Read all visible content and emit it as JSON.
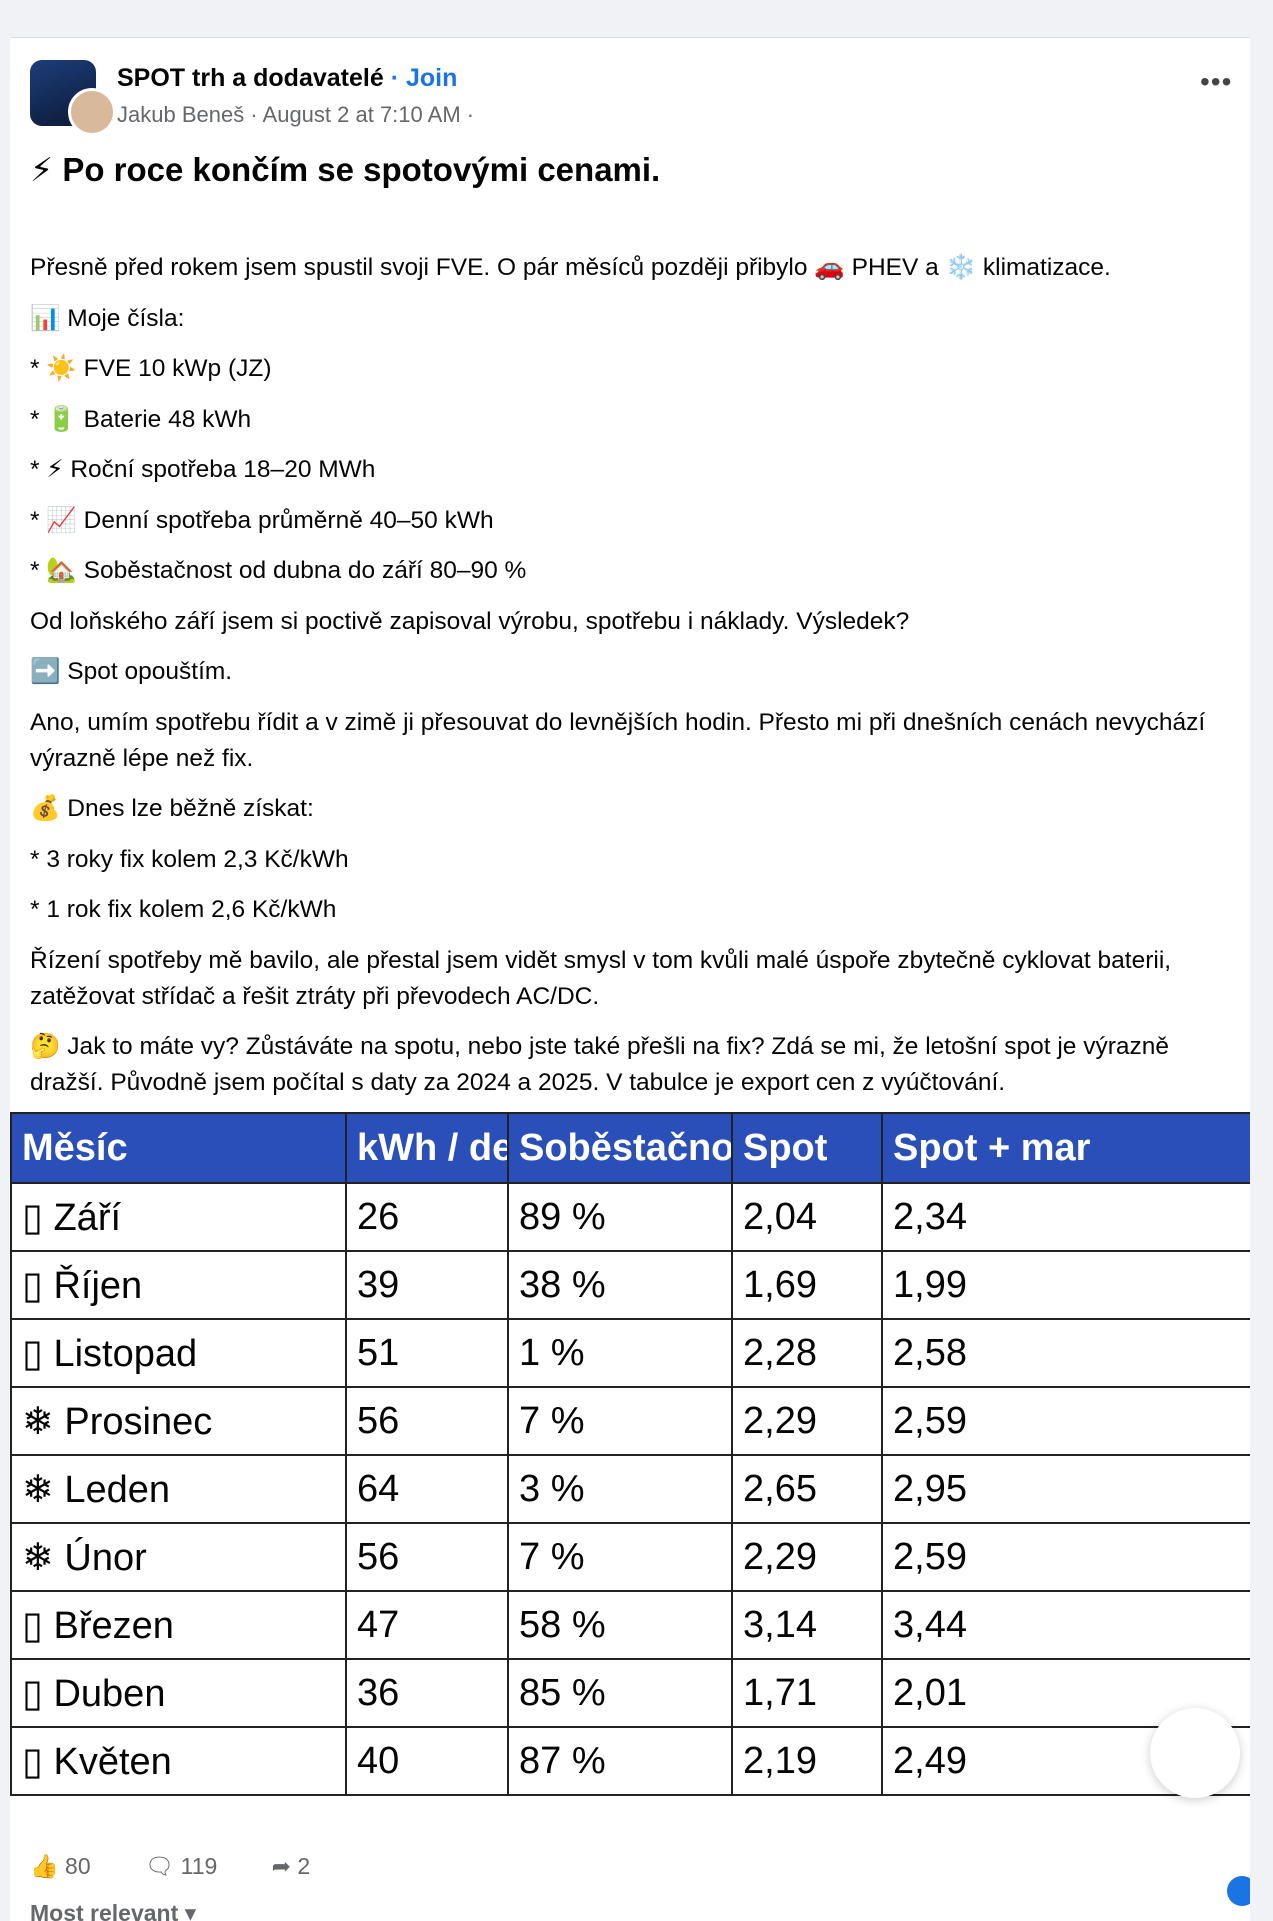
{
  "header": {
    "group": "SPOT trh a dodavatelé",
    "join": "· Join",
    "author": "Jakub Beneš · August 2 at 7:10 AM ·"
  },
  "post": {
    "title": "⚡ Po roce končím se spotovými cenami.",
    "paragraphs": [
      "Přesně před rokem jsem spustil svoji FVE. O pár měsíců později přibylo 🚗 PHEV a ❄️ klimatizace.",
      "📊 Moje čísla:",
      "* ☀️ FVE 10 kWp (JZ)",
      "* 🔋 Baterie 48 kWh",
      "* ⚡ Roční spotřeba 18–20 MWh",
      "* 📈 Denní spotřeba průměrně 40–50 kWh",
      "* 🏡 Soběstačnost od dubna do září 80–90 %",
      "Od loňského září jsem si poctivě zapisoval výrobu, spotřebu i náklady. Výsledek?",
      "➡️ Spot opouštím.",
      "Ano, umím spotřebu řídit a v zimě ji přesouvat do levnějších hodin. Přesto mi při dnešních cenách nevychází výrazně lépe než fix.",
      "💰 Dnes lze běžně získat:",
      "* 3 roky fix kolem 2,3 Kč/kWh",
      "* 1 rok fix kolem 2,6 Kč/kWh",
      "Řízení spotřeby mě bavilo, ale přestal jsem vidět smysl v tom kvůli malé úspoře zbytečně cyklovat baterii, zatěžovat střídač a řešit ztráty při převodech AC/DC.",
      "🤔 Jak to máte vy? Zůstáváte na spotu, nebo jste také přešli na fix? Zdá se mi, že letošní spot je výrazně dražší. Původně jsem počítal s daty za 2024 a 2025. V tabulce je export cen z vyúčtování."
    ]
  },
  "table": {
    "header": [
      "Měsíc",
      "kWh / de",
      "Soběstačno",
      "Spot",
      "Spot + mar"
    ],
    "rows": [
      [
        "▯ Září",
        "26",
        "89 %",
        "2,04",
        "2,34"
      ],
      [
        "▯ Říjen",
        "39",
        "38 %",
        "1,69",
        "1,99"
      ],
      [
        "▯ Listopad",
        "51",
        "1 %",
        "2,28",
        "2,58"
      ],
      [
        "❄ Prosinec",
        "56",
        "7 %",
        "2,29",
        "2,59"
      ],
      [
        "❄ Leden",
        "64",
        "3 %",
        "2,65",
        "2,95"
      ],
      [
        "❄ Únor",
        "56",
        "7 %",
        "2,29",
        "2,59"
      ],
      [
        "▯ Březen",
        "47",
        "58 %",
        "3,14",
        "3,44"
      ],
      [
        "▯ Duben",
        "36",
        "85 %",
        "1,71",
        "2,01"
      ],
      [
        "▯ Květen",
        "40",
        "87 %",
        "2,19",
        "2,49"
      ]
    ]
  },
  "footer": {
    "likes": "👍 80",
    "comments": "🗨 119",
    "shares": "➦ 2",
    "sort": "Most relevant ▾"
  }
}
